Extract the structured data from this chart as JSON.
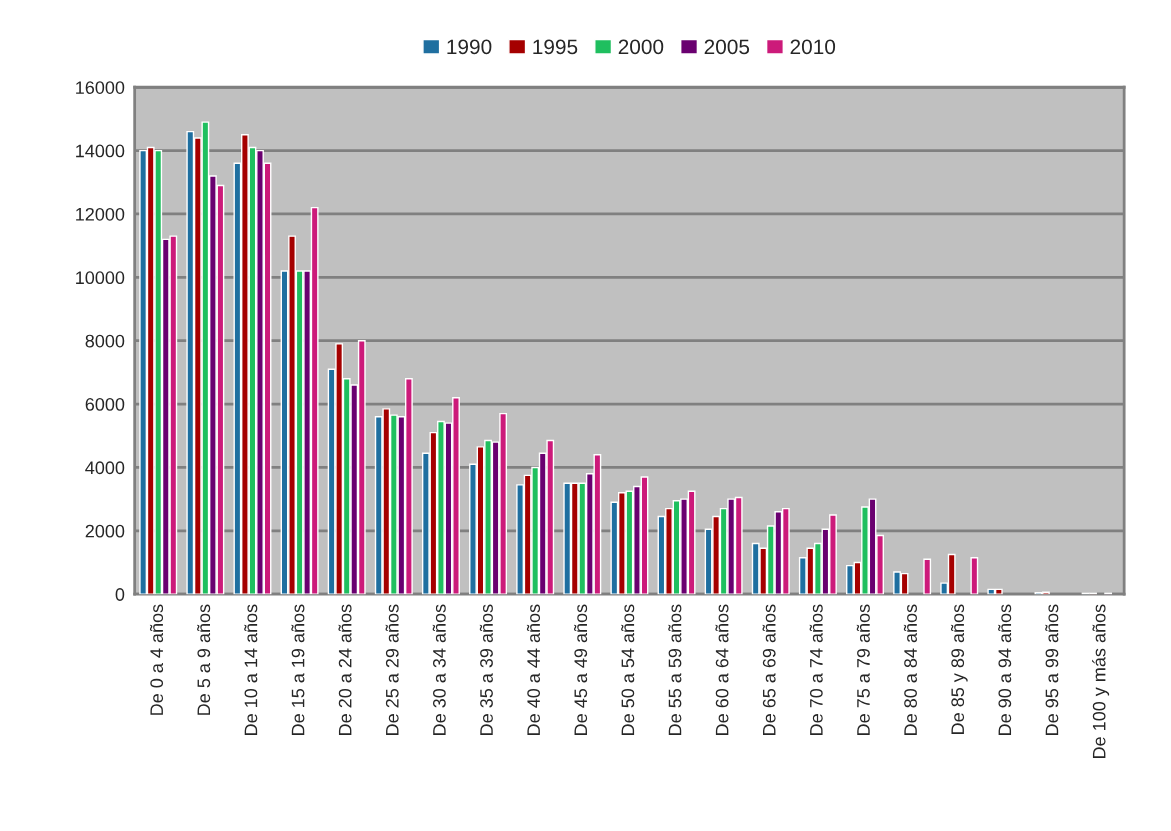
{
  "chart_data": {
    "type": "bar",
    "categories": [
      "De 0 a 4 años",
      "De 5 a 9 años",
      "De 10 a 14 años",
      "De 15 a 19 años",
      "De 20 a 24 años",
      "De 25 a 29 años",
      "De 30 a 34 años",
      "De 35 a 39 años",
      "De 40 a 44 años",
      "De 45 a 49 años",
      "De 50 a 54 años",
      "De 55 a 59 años",
      "De 60 a 64 años",
      "De 65 a 69 años",
      "De 70 a 74 años",
      "De 75 a 79 años",
      "De 80 a 84 años",
      "De 85 y 89 años",
      "De 90 a 94 años",
      "De 95 a 99 años",
      "De 100 y más años"
    ],
    "series": [
      {
        "name": "1990",
        "color": "#1f6fa0",
        "values": [
          14000,
          14600,
          13600,
          10200,
          7100,
          5600,
          4450,
          4100,
          3450,
          3500,
          2900,
          2450,
          2050,
          1600,
          1150,
          900,
          700,
          350,
          150,
          50,
          30
        ]
      },
      {
        "name": "1995",
        "color": "#a50000",
        "values": [
          14100,
          14400,
          14500,
          11300,
          7900,
          5850,
          5100,
          4650,
          3750,
          3500,
          3200,
          2700,
          2450,
          1450,
          1450,
          1000,
          650,
          1250,
          150,
          60,
          30
        ]
      },
      {
        "name": "2000",
        "color": "#1fbf5f",
        "values": [
          14000,
          14900,
          14100,
          10200,
          6800,
          5650,
          5450,
          4850,
          4000,
          3500,
          3250,
          2950,
          2700,
          2150,
          1600,
          2750,
          null,
          null,
          null,
          null,
          null
        ]
      },
      {
        "name": "2005",
        "color": "#6a0070",
        "values": [
          11200,
          13200,
          14000,
          10200,
          6600,
          5600,
          5400,
          4800,
          4450,
          3800,
          3400,
          3000,
          3000,
          2600,
          2050,
          3000,
          null,
          null,
          null,
          null,
          30
        ]
      },
      {
        "name": "2010",
        "color": "#cc1a7a",
        "values": [
          11300,
          12900,
          13600,
          12200,
          8000,
          6800,
          6200,
          5700,
          4850,
          4400,
          3700,
          3250,
          3050,
          2700,
          2500,
          1850,
          1100,
          1150,
          null,
          null,
          null
        ]
      }
    ],
    "ylim": [
      0,
      16000
    ],
    "yticks": [
      0,
      2000,
      4000,
      6000,
      8000,
      10000,
      12000,
      14000,
      16000
    ],
    "grid": "y",
    "legend": "top"
  }
}
